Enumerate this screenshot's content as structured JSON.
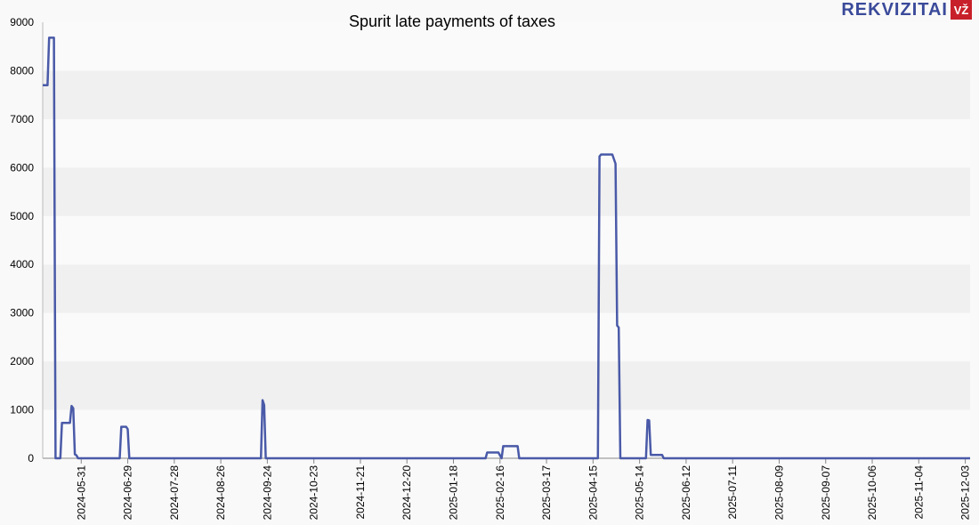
{
  "logo": {
    "text": "REKVIZITAI",
    "badge": "VŽ"
  },
  "colors": {
    "line": "#4a5aa8",
    "band_dark": "#f0f0f0",
    "band_light": "#fafafa",
    "logo_red": "#c8202a",
    "logo_blue": "#3a4a9a"
  },
  "chart_data": {
    "type": "line",
    "title": "Spurit late payments of taxes",
    "xlabel": "",
    "ylabel": "",
    "ylim": [
      0,
      9000
    ],
    "yticks": [
      0,
      1000,
      2000,
      3000,
      4000,
      5000,
      6000,
      7000,
      8000,
      9000
    ],
    "xlim": [
      "2024-05-07",
      "2025-12-06"
    ],
    "xticks": [
      "2024-05-31",
      "2024-06-29",
      "2024-07-28",
      "2024-08-26",
      "2024-09-24",
      "2024-10-23",
      "2024-11-21",
      "2024-12-20",
      "2025-01-18",
      "2025-02-16",
      "2025-03-17",
      "2025-04-15",
      "2025-05-14",
      "2025-06-12",
      "2025-07-11",
      "2025-08-09",
      "2025-09-07",
      "2025-10-06",
      "2025-11-04",
      "2025-12-03"
    ],
    "grid": "horizontal bands",
    "series": [
      {
        "points": [
          [
            "2024-05-07",
            7700
          ],
          [
            "2024-05-10",
            7700
          ],
          [
            "2024-05-11",
            8680
          ],
          [
            "2024-05-14",
            8680
          ],
          [
            "2024-05-15",
            0
          ],
          [
            "2024-05-18",
            0
          ],
          [
            "2024-05-19",
            730
          ],
          [
            "2024-05-24",
            730
          ],
          [
            "2024-05-25",
            1080
          ],
          [
            "2024-05-26",
            1030
          ],
          [
            "2024-05-27",
            80
          ],
          [
            "2024-05-28",
            60
          ],
          [
            "2024-05-29",
            0
          ],
          [
            "2024-06-24",
            0
          ],
          [
            "2024-06-25",
            650
          ],
          [
            "2024-06-28",
            650
          ],
          [
            "2024-06-29",
            600
          ],
          [
            "2024-06-30",
            0
          ],
          [
            "2024-09-20",
            0
          ],
          [
            "2024-09-21",
            1200
          ],
          [
            "2024-09-22",
            1100
          ],
          [
            "2024-09-23",
            0
          ],
          [
            "2025-02-07",
            0
          ],
          [
            "2025-02-08",
            120
          ],
          [
            "2025-02-15",
            120
          ],
          [
            "2025-02-17",
            0
          ],
          [
            "2025-02-18",
            250
          ],
          [
            "2025-02-27",
            250
          ],
          [
            "2025-02-28",
            0
          ],
          [
            "2025-04-18",
            0
          ],
          [
            "2025-04-19",
            6230
          ],
          [
            "2025-04-20",
            6270
          ],
          [
            "2025-04-27",
            6270
          ],
          [
            "2025-04-29",
            6080
          ],
          [
            "2025-04-30",
            2740
          ],
          [
            "2025-05-01",
            2700
          ],
          [
            "2025-05-02",
            0
          ],
          [
            "2025-05-18",
            0
          ],
          [
            "2025-05-19",
            790
          ],
          [
            "2025-05-20",
            780
          ],
          [
            "2025-05-21",
            70
          ],
          [
            "2025-05-28",
            70
          ],
          [
            "2025-05-29",
            0
          ],
          [
            "2025-12-06",
            0
          ]
        ]
      }
    ]
  }
}
